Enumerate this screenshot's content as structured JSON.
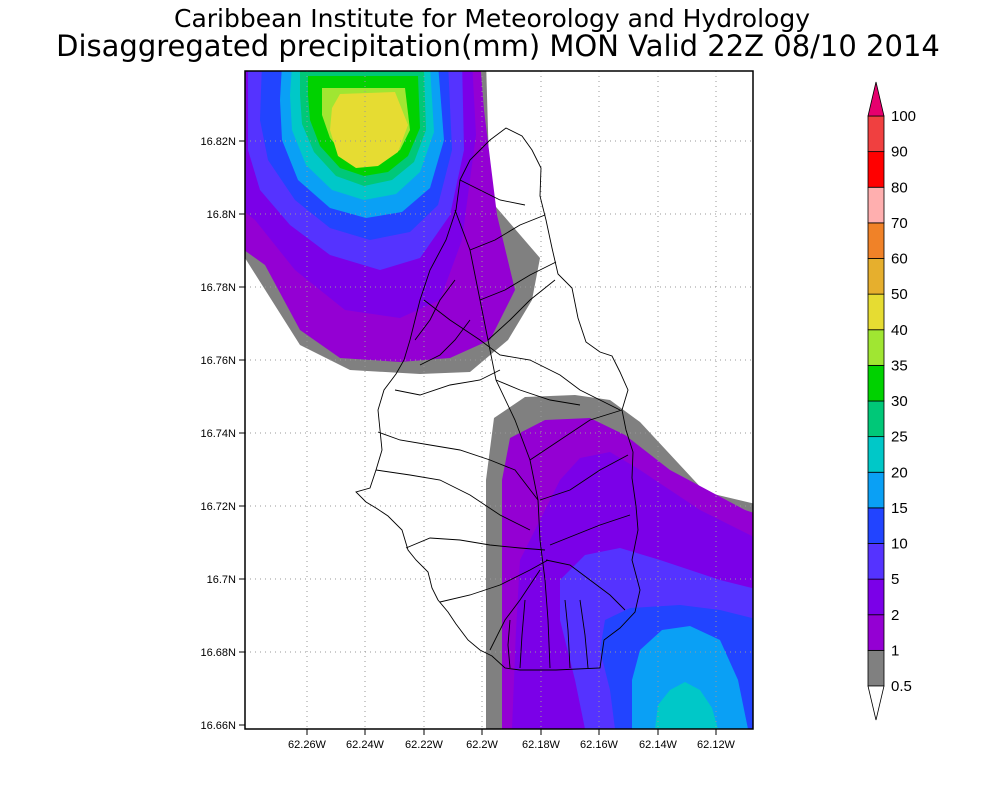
{
  "header": {
    "title": "Caribbean Institute for Meteorology and Hydrology",
    "subtitle": "Disaggregated precipitation(mm) MON Valid 22Z 08/10 2014"
  },
  "map": {
    "lat_ticks": [
      "16.82N",
      "16.8N",
      "16.78N",
      "16.76N",
      "16.74N",
      "16.72N",
      "16.7N",
      "16.68N",
      "16.66N"
    ],
    "lon_ticks": [
      "62.26W",
      "62.24W",
      "62.22W",
      "62.2W",
      "62.18W",
      "62.16W",
      "62.14W",
      "62.12W"
    ],
    "lat_range": [
      16.66,
      16.84
    ],
    "lon_range": [
      -62.28,
      -62.11
    ],
    "gridlines": true
  },
  "colorbar": {
    "levels": [
      {
        "label": "0.5",
        "color": "#ffffff"
      },
      {
        "label": "1",
        "color": "#808080"
      },
      {
        "label": "2",
        "color": "#9400d3"
      },
      {
        "label": "5",
        "color": "#7b00e8"
      },
      {
        "label": "10",
        "color": "#5533ff"
      },
      {
        "label": "15",
        "color": "#2244ff"
      },
      {
        "label": "20",
        "color": "#0aa0f5"
      },
      {
        "label": "25",
        "color": "#00c8c8"
      },
      {
        "label": "30",
        "color": "#00c878"
      },
      {
        "label": "35",
        "color": "#00d200"
      },
      {
        "label": "40",
        "color": "#a0e632"
      },
      {
        "label": "50",
        "color": "#e6dc32"
      },
      {
        "label": "60",
        "color": "#e6af2d"
      },
      {
        "label": "70",
        "color": "#f08228"
      },
      {
        "label": "80",
        "color": "#ffafaf"
      },
      {
        "label": "90",
        "color": "#ff0000"
      },
      {
        "label": "100",
        "color": "#f04040"
      }
    ],
    "top_color": "#e6006e",
    "bottom_color": "#ffffff"
  }
}
